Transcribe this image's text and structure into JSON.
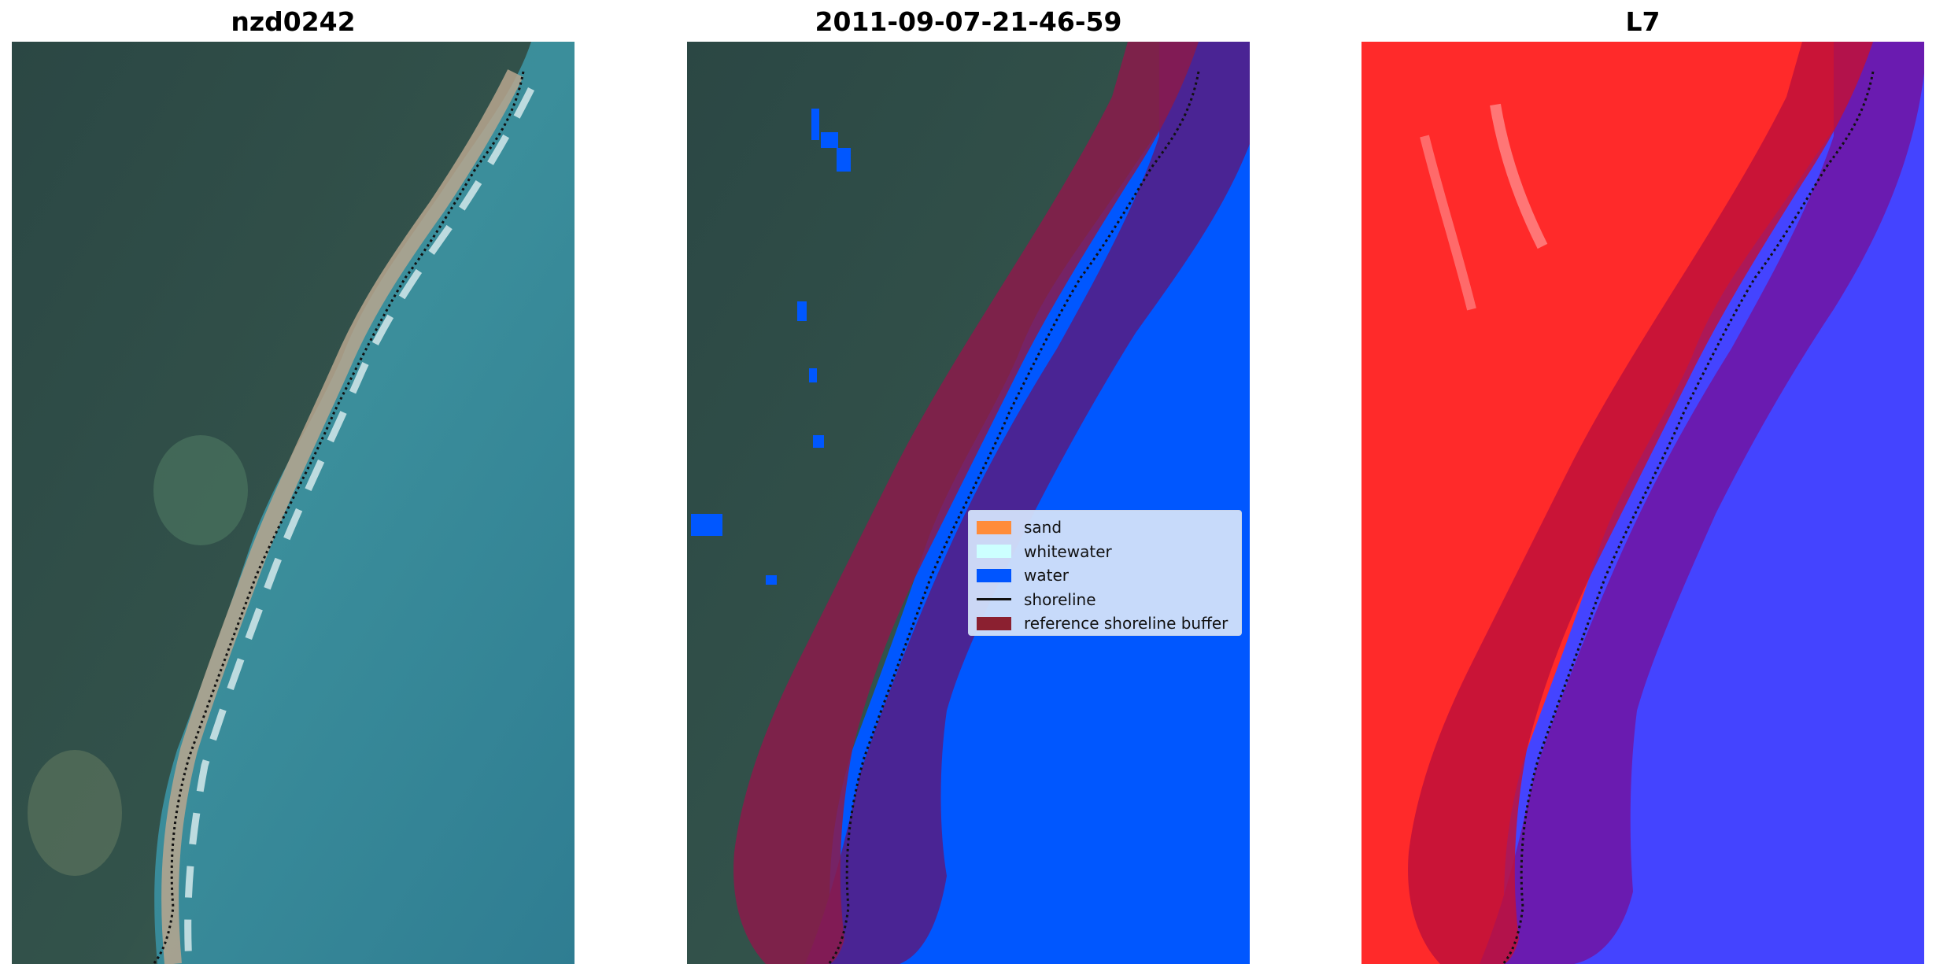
{
  "panels": [
    {
      "title": "nzd0242",
      "kind": "satellite-rgb"
    },
    {
      "title": "2011-09-07-21-46-59",
      "kind": "classified-overlay"
    },
    {
      "title": "L7",
      "kind": "mndwi-index"
    }
  ],
  "legend": {
    "items": [
      {
        "label": "sand",
        "color": "#ff8c3a",
        "type": "patch"
      },
      {
        "label": "whitewater",
        "color": "#ccffff",
        "type": "patch"
      },
      {
        "label": "water",
        "color": "#0055ff",
        "type": "patch"
      },
      {
        "label": "shoreline",
        "color": "#000000",
        "type": "line"
      },
      {
        "label": "reference shoreline buffer",
        "color": "#8b2030",
        "type": "patch"
      }
    ]
  },
  "colors": {
    "land_dark": "#2c4a45",
    "sea": "#3c8a96",
    "water_class": "#0055ff",
    "buffer": "#8b1a3a",
    "index_red": "#ff2a2a",
    "index_blue": "#3a3aff"
  }
}
